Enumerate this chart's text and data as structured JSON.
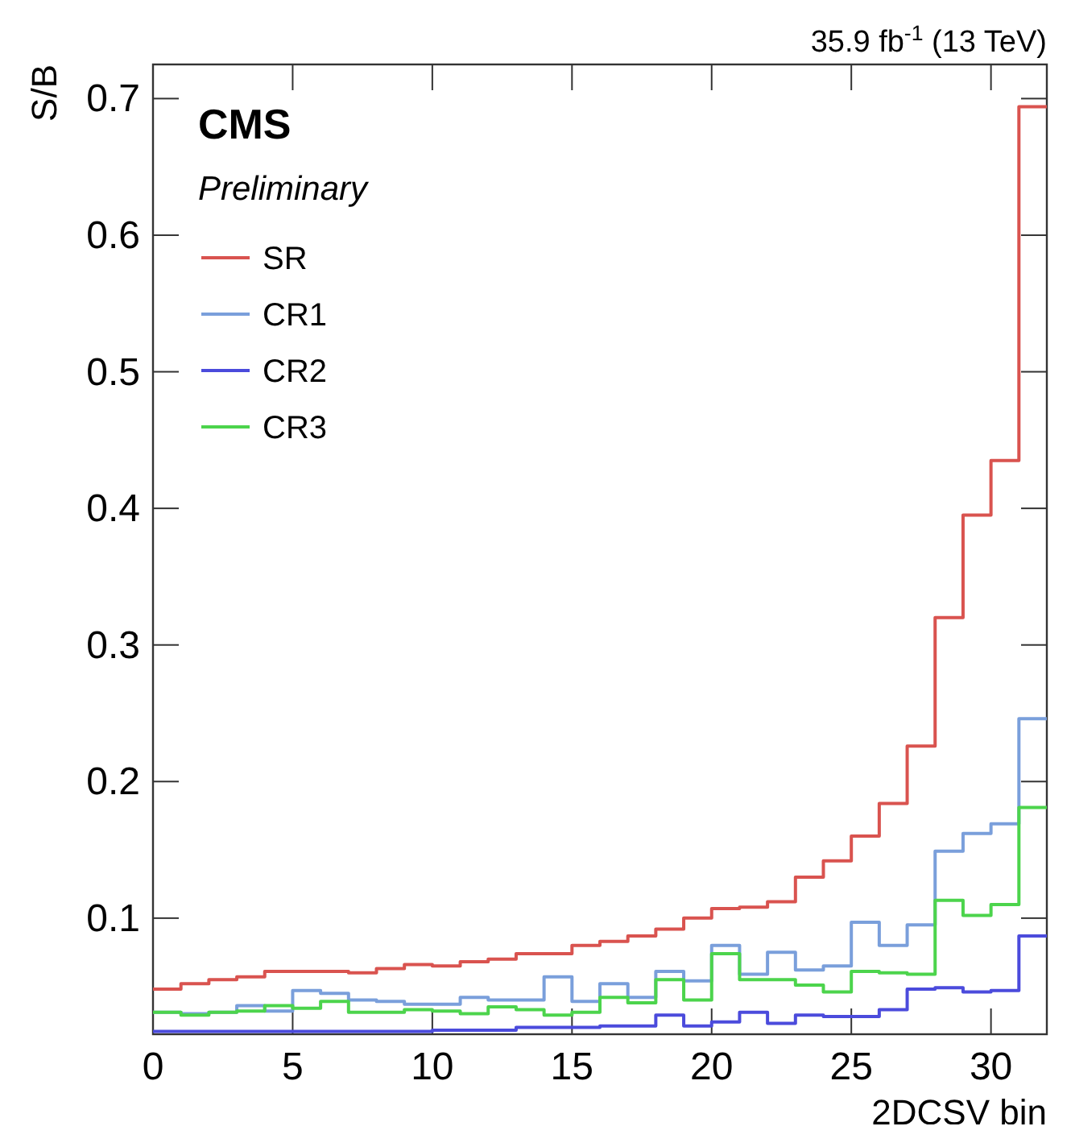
{
  "chart_data": {
    "type": "histogram",
    "title": "35.9 fb$^{-1}$ (13 TeV)",
    "xlabel": "2DCSV bin",
    "ylabel": "S/B",
    "annotations": [
      "CMS",
      "Preliminary"
    ],
    "bins": [
      0,
      1,
      2,
      3,
      4,
      5,
      6,
      7,
      8,
      9,
      10,
      11,
      12,
      13,
      14,
      15,
      16,
      17,
      18,
      19,
      20,
      21,
      22,
      23,
      24,
      25,
      26,
      27,
      28,
      29,
      30,
      31,
      32
    ],
    "series": [
      {
        "name": "SR",
        "color": "#d9534f",
        "values": [
          0.048,
          0.052,
          0.055,
          0.057,
          0.061,
          0.061,
          0.061,
          0.06,
          0.063,
          0.066,
          0.065,
          0.068,
          0.07,
          0.074,
          0.074,
          0.08,
          0.083,
          0.087,
          0.092,
          0.1,
          0.107,
          0.108,
          0.112,
          0.13,
          0.142,
          0.16,
          0.184,
          0.226,
          0.32,
          0.395,
          0.435,
          0.694
        ]
      },
      {
        "name": "CR1",
        "color": "#7a9fdb",
        "values": [
          0.031,
          0.03,
          0.031,
          0.036,
          0.032,
          0.047,
          0.045,
          0.04,
          0.039,
          0.037,
          0.037,
          0.042,
          0.04,
          0.04,
          0.057,
          0.039,
          0.052,
          0.042,
          0.061,
          0.054,
          0.08,
          0.059,
          0.075,
          0.062,
          0.065,
          0.097,
          0.08,
          0.095,
          0.149,
          0.162,
          0.169,
          0.246
        ]
      },
      {
        "name": "CR2",
        "color": "#4b4bdc",
        "values": [
          0.017,
          0.017,
          0.017,
          0.017,
          0.017,
          0.017,
          0.017,
          0.017,
          0.017,
          0.017,
          0.018,
          0.018,
          0.018,
          0.02,
          0.02,
          0.02,
          0.021,
          0.021,
          0.029,
          0.021,
          0.024,
          0.031,
          0.023,
          0.029,
          0.028,
          0.028,
          0.033,
          0.048,
          0.049,
          0.046,
          0.047,
          0.087
        ]
      },
      {
        "name": "CR3",
        "color": "#4cd44c",
        "values": [
          0.031,
          0.029,
          0.031,
          0.032,
          0.036,
          0.034,
          0.039,
          0.031,
          0.031,
          0.033,
          0.032,
          0.03,
          0.035,
          0.033,
          0.029,
          0.031,
          0.042,
          0.038,
          0.055,
          0.04,
          0.074,
          0.055,
          0.055,
          0.051,
          0.046,
          0.061,
          0.06,
          0.059,
          0.113,
          0.102,
          0.11,
          0.181
        ]
      }
    ],
    "xlim": [
      0,
      32
    ],
    "ylim": [
      0.015,
      0.725
    ],
    "xticks": [
      0,
      5,
      10,
      15,
      20,
      25,
      30
    ],
    "yticks": [
      0.1,
      0.2,
      0.3,
      0.4,
      0.5,
      0.6,
      0.7
    ],
    "legend": "top left"
  }
}
